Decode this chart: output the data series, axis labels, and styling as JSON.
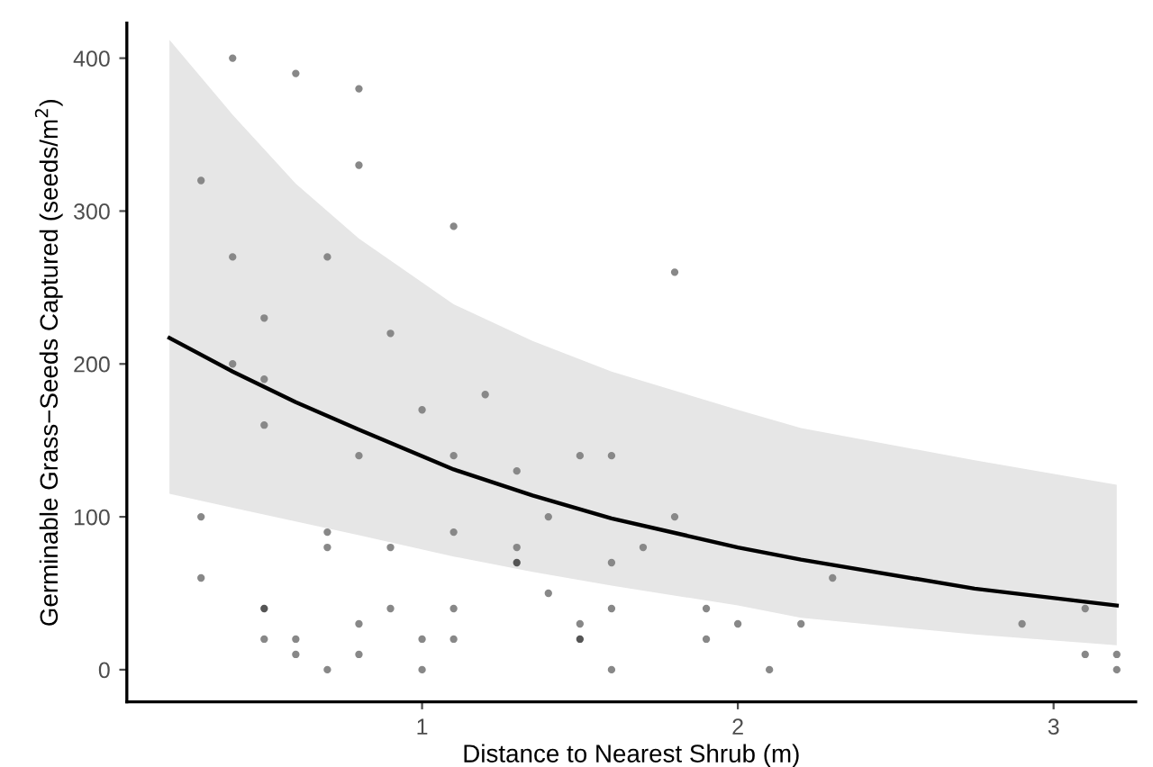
{
  "chart_data": {
    "type": "scatter",
    "xlabel": "Distance to Nearest Shrub (m)",
    "ylabel": "Germinable Grass−Seeds Captured (seeds/m$^{2}$)",
    "xlim": [
      0.065,
      3.26
    ],
    "xticks": [
      1,
      2,
      3
    ],
    "ylim": [
      -21,
      423
    ],
    "yticks": [
      0,
      100,
      200,
      300,
      400
    ],
    "grid": false,
    "legend": false,
    "marker": "circle",
    "series": [
      {
        "type": "line",
        "color": "#000000",
        "line_style": "solid",
        "marker": "none",
        "x": [
          0.2,
          0.4,
          0.6,
          0.8,
          1.1,
          1.35,
          1.6,
          2.0,
          2.2,
          2.75,
          3.2
        ],
        "values": [
          217,
          195,
          175,
          157,
          131,
          114,
          99,
          80,
          72,
          53,
          42
        ],
        "lower": [
          115,
          106,
          97,
          88,
          74,
          64,
          55,
          42,
          34,
          23,
          16
        ],
        "upper": [
          412,
          363,
          318,
          282,
          239,
          215,
          195,
          170,
          158,
          137,
          121
        ]
      },
      {
        "x": [
          0.3,
          0.3,
          0.3,
          0.4,
          0.4,
          0.4,
          0.5,
          0.5,
          0.5,
          0.5,
          0.5,
          0.6,
          0.6,
          0.6,
          0.7,
          0.7,
          0.7,
          0.7,
          0.8,
          0.8,
          0.8,
          0.8,
          0.8,
          0.9,
          0.9,
          0.9,
          1.0,
          1.0,
          1.0,
          1.1,
          1.1,
          1.1,
          1.1,
          1.1,
          1.2,
          1.3,
          1.3,
          1.3,
          1.4,
          1.4,
          1.5,
          1.5,
          1.5,
          1.6,
          1.6,
          1.6,
          1.6,
          1.7,
          1.8,
          1.8,
          1.9,
          1.9,
          2.0,
          2.1,
          2.2,
          2.3,
          2.9,
          3.1,
          3.1,
          3.2,
          3.2
        ],
        "values": [
          320,
          100,
          60,
          400,
          270,
          200,
          230,
          190,
          160,
          40,
          20,
          390,
          20,
          10,
          270,
          90,
          80,
          0,
          380,
          330,
          140,
          30,
          10,
          220,
          80,
          40,
          170,
          20,
          0,
          290,
          140,
          90,
          40,
          20,
          180,
          130,
          80,
          70,
          100,
          50,
          140,
          30,
          20,
          140,
          70,
          40,
          0,
          80,
          260,
          100,
          40,
          20,
          30,
          0,
          30,
          60,
          30,
          40,
          10,
          10,
          0
        ],
        "colors": [
          "#888888",
          "#888888",
          "#888888",
          "#888888",
          "#888888",
          "#888888",
          "#888888",
          "#888888",
          "#888888",
          "#555555",
          "#888888",
          "#888888",
          "#888888",
          "#888888",
          "#888888",
          "#888888",
          "#888888",
          "#888888",
          "#888888",
          "#888888",
          "#888888",
          "#888888",
          "#888888",
          "#888888",
          "#888888",
          "#888888",
          "#888888",
          "#888888",
          "#888888",
          "#888888",
          "#888888",
          "#888888",
          "#888888",
          "#888888",
          "#888888",
          "#888888",
          "#888888",
          "#555555",
          "#888888",
          "#888888",
          "#888888",
          "#888888",
          "#555555",
          "#888888",
          "#888888",
          "#888888",
          "#888888",
          "#888888",
          "#888888",
          "#888888",
          "#888888",
          "#888888",
          "#888888",
          "#888888",
          "#888888",
          "#888888",
          "#888888",
          "#888888",
          "#888888",
          "#888888",
          "#888888"
        ]
      }
    ]
  }
}
